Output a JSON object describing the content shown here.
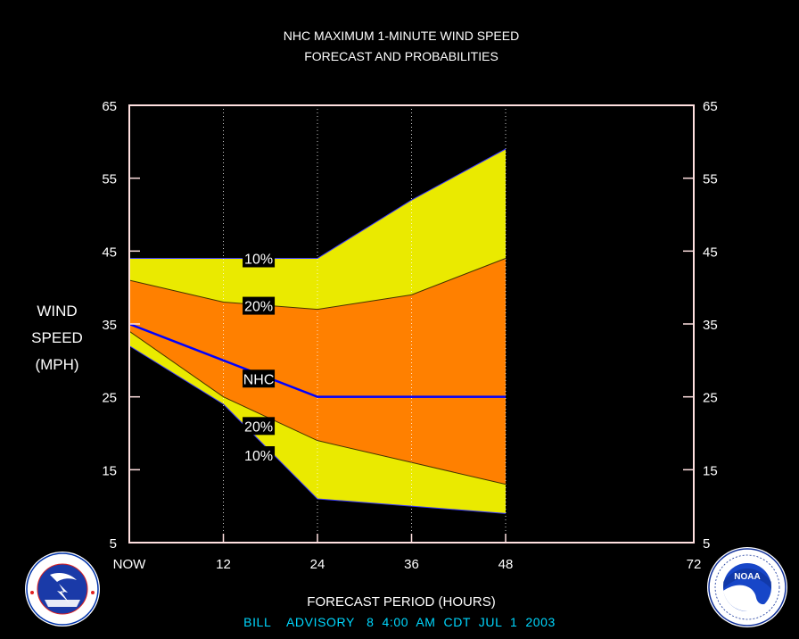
{
  "chart_data": {
    "type": "area",
    "title_lines": [
      "NHC MAXIMUM 1-MINUTE WIND SPEED",
      "FORECAST AND PROBABILITIES"
    ],
    "ylabel_lines": [
      "WIND",
      "SPEED",
      "(MPH)"
    ],
    "xlabel": "FORECAST PERIOD (HOURS)",
    "advisory": "BILL    ADVISORY   8  4:00  AM  CDT  JUL  1  2003",
    "x_tick_labels": [
      "NOW",
      "12",
      "24",
      "36",
      "48",
      "72"
    ],
    "x_ticks": [
      0,
      12,
      24,
      36,
      48,
      72
    ],
    "y_ticks": [
      5,
      15,
      25,
      35,
      45,
      55,
      65
    ],
    "xlim": [
      0,
      72
    ],
    "ylim": [
      5,
      65
    ],
    "x": [
      0,
      12,
      24,
      36,
      48
    ],
    "series": [
      {
        "name": "10%",
        "values": [
          44,
          44,
          44,
          52,
          59
        ]
      },
      {
        "name": "20%",
        "values": [
          41,
          38,
          37,
          39,
          44
        ]
      },
      {
        "name": "NHC",
        "values": [
          35,
          30,
          25,
          25,
          25
        ]
      },
      {
        "name": "20%",
        "values": [
          34,
          25,
          19,
          16,
          13
        ]
      },
      {
        "name": "10%",
        "values": [
          32,
          24,
          11,
          10,
          9
        ]
      }
    ],
    "band_labels": [
      {
        "text": "10%",
        "x": 16.5,
        "y": 44
      },
      {
        "text": "20%",
        "x": 16.5,
        "y": 37.5
      },
      {
        "text": "NHC",
        "x": 16.5,
        "y": 27.5
      },
      {
        "text": "20%",
        "x": 16.5,
        "y": 21
      },
      {
        "text": "10%",
        "x": 16.5,
        "y": 17
      }
    ],
    "colors": {
      "outer_band": "#eaea00",
      "inner_band": "#ff8000",
      "nhc_line": "#0000ff",
      "frame": "#ffe0e0",
      "label_bg": "#000000",
      "advisory_text": "#00d8ff"
    }
  },
  "logos": {
    "left": {
      "icon": "nws-logo",
      "text": "NATIONAL WEATHER SERVICE"
    },
    "right": {
      "icon": "noaa-logo",
      "text": "NOAA",
      "ring_text": "NATIONAL OCEANIC AND ATMOSPHERIC ADMINISTRATION · U.S. DEPARTMENT OF COMMERCE"
    }
  }
}
